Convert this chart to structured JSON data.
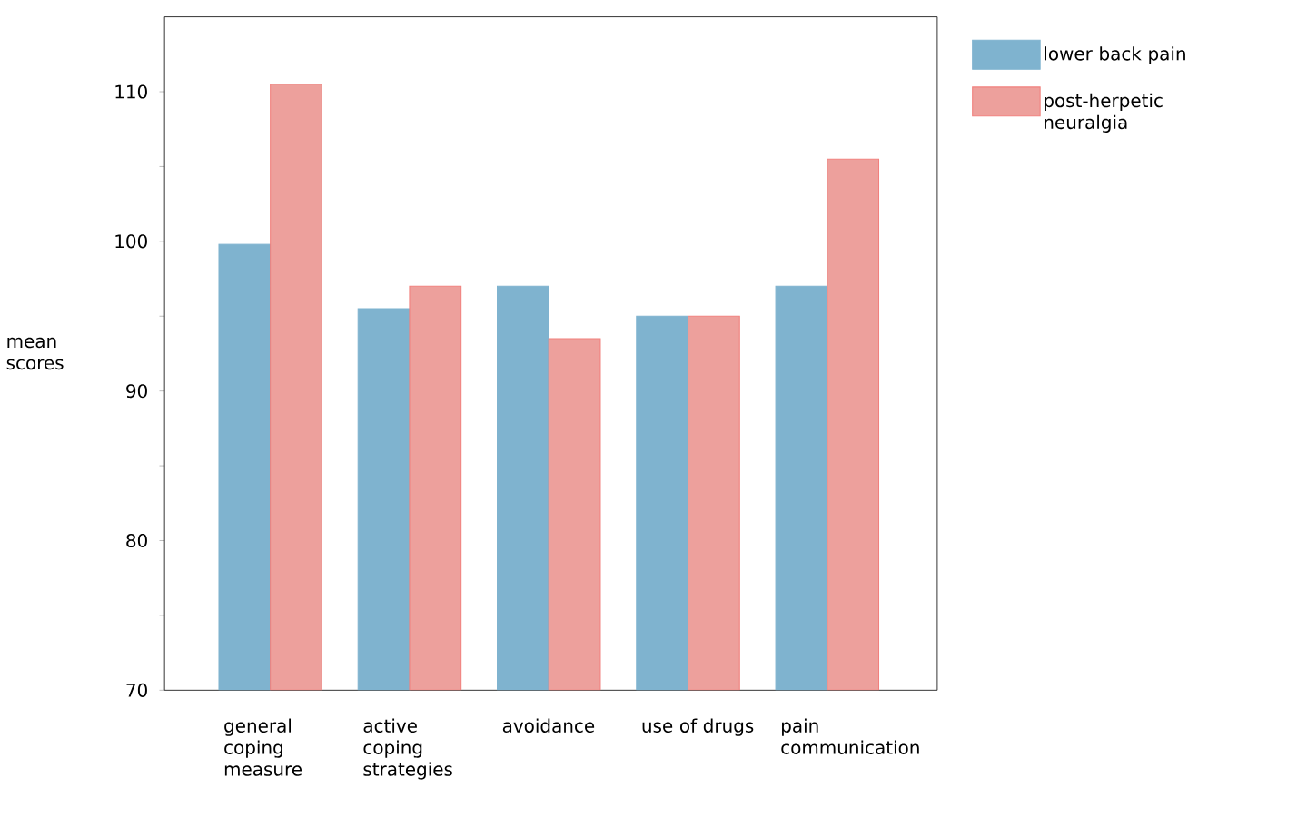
{
  "chart_data": {
    "type": "bar",
    "ylabel": "mean scores",
    "categories": [
      "general coping measure",
      "active coping strategies",
      "avoidance",
      "use of drugs",
      "pain communication"
    ],
    "series": [
      {
        "name": "lower back pain",
        "color": "#7fb3cf",
        "values": [
          99.8,
          95.5,
          97,
          95,
          97
        ]
      },
      {
        "name": "post-herpetic neuralgia",
        "color": "#eda09c",
        "values": [
          110.5,
          97,
          93.5,
          95,
          105.5
        ]
      }
    ],
    "ylim": [
      70,
      115
    ],
    "yticks": [
      70,
      {
        "value": 75,
        "label": null
      },
      80,
      {
        "value": 85,
        "label": null
      },
      90,
      {
        "value": 95,
        "label": null
      },
      100,
      {
        "value": 105,
        "label": null
      },
      110
    ],
    "grid": false,
    "legend": "top right"
  }
}
